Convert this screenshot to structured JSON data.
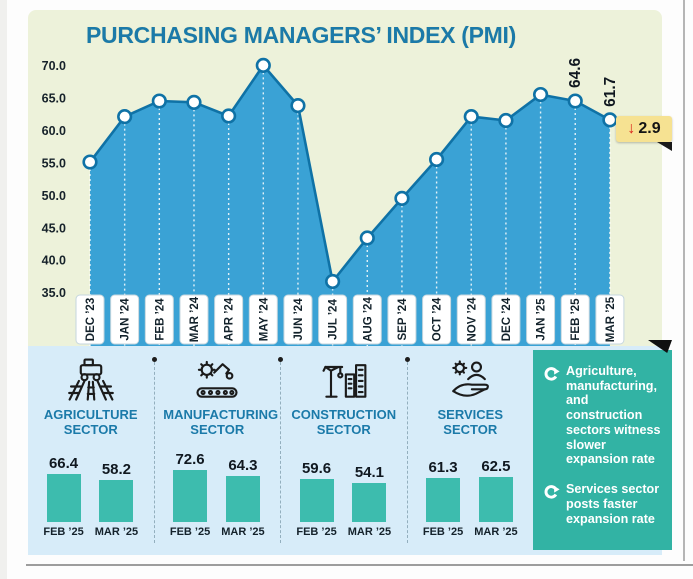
{
  "chart_data": [
    {
      "type": "area",
      "title": "PURCHASING MANAGERS’ INDEX (PMI)",
      "categories": [
        "DEC ’23",
        "JAN ’24",
        "FEB ’24",
        "MAR ’24",
        "APR ’24",
        "MAY ’24",
        "JUN ’24",
        "JUL ’24",
        "AUG ’24",
        "SEP ’24",
        "OCT ’24",
        "NOV ’24",
        "DEC ’24",
        "JAN ’25",
        "FEB ’25",
        "MAR ’25"
      ],
      "values": [
        55.2,
        62.2,
        64.6,
        64.4,
        62.3,
        70.1,
        63.9,
        36.8,
        43.5,
        49.6,
        55.6,
        62.2,
        61.6,
        65.6,
        64.6,
        61.7
      ],
      "y_ticks": [
        70,
        65,
        60,
        55,
        50,
        45,
        40,
        35
      ],
      "y_tick_labels": [
        "70.0",
        "65.0",
        "60.0",
        "55.0",
        "50.0",
        "45.0",
        "40.0",
        "35.0"
      ],
      "ylim": [
        35,
        70
      ],
      "grid": "vertical-dotted-white",
      "legend": "none",
      "point_labels": [
        {
          "index": 14,
          "text": "64.6"
        },
        {
          "index": 15,
          "text": "61.7"
        }
      ],
      "change_badge": {
        "arrow": "↓",
        "value": "2.9"
      }
    },
    {
      "type": "bar",
      "title": "AGRICULTURE SECTOR",
      "icon": "agriculture-icon",
      "categories": [
        "FEB ’25",
        "MAR ’25"
      ],
      "values": [
        66.4,
        58.2
      ]
    },
    {
      "type": "bar",
      "title": "MANUFACTURING SECTOR",
      "icon": "manufacturing-icon",
      "categories": [
        "FEB ’25",
        "MAR ’25"
      ],
      "values": [
        72.6,
        64.3
      ]
    },
    {
      "type": "bar",
      "title": "CONSTRUCTION SECTOR",
      "icon": "construction-icon",
      "categories": [
        "FEB ’25",
        "MAR ’25"
      ],
      "values": [
        59.6,
        54.1
      ]
    },
    {
      "type": "bar",
      "title": "SERVICES SECTOR",
      "icon": "services-icon",
      "categories": [
        "FEB ’25",
        "MAR ’25"
      ],
      "values": [
        61.3,
        62.5
      ]
    }
  ],
  "insights": [
    {
      "icon": "circular-arrow-icon",
      "text": "Agriculture, manufacturing, and construction sectors witness slower expansion rate"
    },
    {
      "icon": "circular-arrow-icon",
      "text": "Services sector posts faster expansion rate"
    }
  ],
  "icons": {
    "badge": "down-arrow-icon",
    "bullet": "circular-arrow-icon",
    "sector_icons": [
      "agriculture-icon",
      "manufacturing-icon",
      "construction-icon",
      "services-icon"
    ]
  },
  "colors": {
    "title_blue": "#1b7aa9",
    "chart_fill": "#3aa2d5",
    "chart_line": "#0f72a6",
    "panel_cream": "#edf2da",
    "panel_lightblue": "#d7ecf9",
    "teal": "#32b3a4",
    "bar_teal": "#3dbcae",
    "badge_yellow": "#f6e292",
    "badge_arrow_red": "#da251c"
  }
}
